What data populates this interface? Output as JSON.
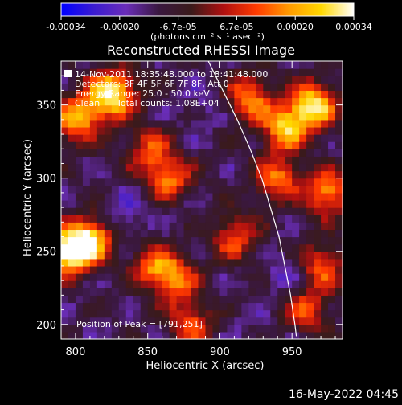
{
  "chart_data": {
    "type": "heatmap",
    "title": "Reconstructed RHESSI Image",
    "xlabel": "Heliocentric X (arcsec)",
    "ylabel": "Heliocentric Y (arcsec)",
    "xlim": [
      790,
      985
    ],
    "ylim": [
      190,
      380
    ],
    "xticks": [
      800,
      850,
      900,
      950
    ],
    "yticks": [
      200,
      250,
      300,
      350
    ],
    "colorbar": {
      "range": [
        -0.00034,
        0.00034
      ],
      "tick_labels": [
        "-0.00034",
        "-0.00020",
        "-6.7e-05",
        "6.7e-05",
        "0.00020",
        "0.00034"
      ],
      "unit_label": "(photons cm⁻² s⁻¹ asec⁻²)",
      "colormap": [
        "#0000ff",
        "#3a1bd0",
        "#6a2db8",
        "#3a1840",
        "#3a1a1a",
        "#b01010",
        "#ff3a00",
        "#ff9a00",
        "#ffd800",
        "#ffffff"
      ]
    },
    "annotations": {
      "time_range": "14-Nov-2011 18:35:48.000 to 18:41:48.000",
      "detectors": "Detectors: 3F 4F 5F 6F 7F 8F, Att 0",
      "energy": "Energy Range: 25.0 - 50.0 keV",
      "method": "Clean",
      "total_counts": "Total counts: 1.08E+04",
      "peak": "Position of Peak = [791,251]"
    },
    "limb_curve": [
      [
        892,
        380
      ],
      [
        902,
        360
      ],
      [
        912,
        340
      ],
      [
        921,
        320
      ],
      [
        929,
        300
      ],
      [
        935,
        280
      ],
      [
        941,
        260
      ],
      [
        945,
        240
      ],
      [
        949,
        220
      ],
      [
        952,
        200
      ],
      [
        953,
        192
      ]
    ],
    "bright_regions": [
      {
        "x": 965,
        "y": 350,
        "intensity": 0.0003
      },
      {
        "x": 945,
        "y": 335,
        "intensity": 0.00024
      },
      {
        "x": 920,
        "y": 355,
        "intensity": 0.00018
      },
      {
        "x": 940,
        "y": 300,
        "intensity": 0.00016
      },
      {
        "x": 975,
        "y": 290,
        "intensity": 0.0002
      },
      {
        "x": 795,
        "y": 250,
        "intensity": 0.00034
      },
      {
        "x": 810,
        "y": 258,
        "intensity": 0.00026
      },
      {
        "x": 800,
        "y": 340,
        "intensity": 0.0002
      },
      {
        "x": 820,
        "y": 355,
        "intensity": 0.00016
      },
      {
        "x": 830,
        "y": 360,
        "intensity": 0.00012
      },
      {
        "x": 865,
        "y": 300,
        "intensity": 0.00016
      },
      {
        "x": 855,
        "y": 240,
        "intensity": 0.00014
      },
      {
        "x": 870,
        "y": 230,
        "intensity": 0.00012
      },
      {
        "x": 910,
        "y": 260,
        "intensity": 0.00012
      },
      {
        "x": 880,
        "y": 200,
        "intensity": 0.00012
      },
      {
        "x": 970,
        "y": 240,
        "intensity": 0.00014
      },
      {
        "x": 960,
        "y": 210,
        "intensity": 0.00012
      },
      {
        "x": 850,
        "y": 320,
        "intensity": 0.0001
      }
    ],
    "dark_regions": [
      {
        "x": 835,
        "y": 275,
        "intensity": -0.0002
      },
      {
        "x": 890,
        "y": 350,
        "intensity": -0.00018
      },
      {
        "x": 950,
        "y": 235,
        "intensity": -0.00022
      },
      {
        "x": 920,
        "y": 200,
        "intensity": -0.00015
      },
      {
        "x": 870,
        "y": 285,
        "intensity": -0.00014
      },
      {
        "x": 815,
        "y": 215,
        "intensity": -0.00012
      }
    ]
  },
  "footer": {
    "date": "16-May-2022 04:45"
  }
}
